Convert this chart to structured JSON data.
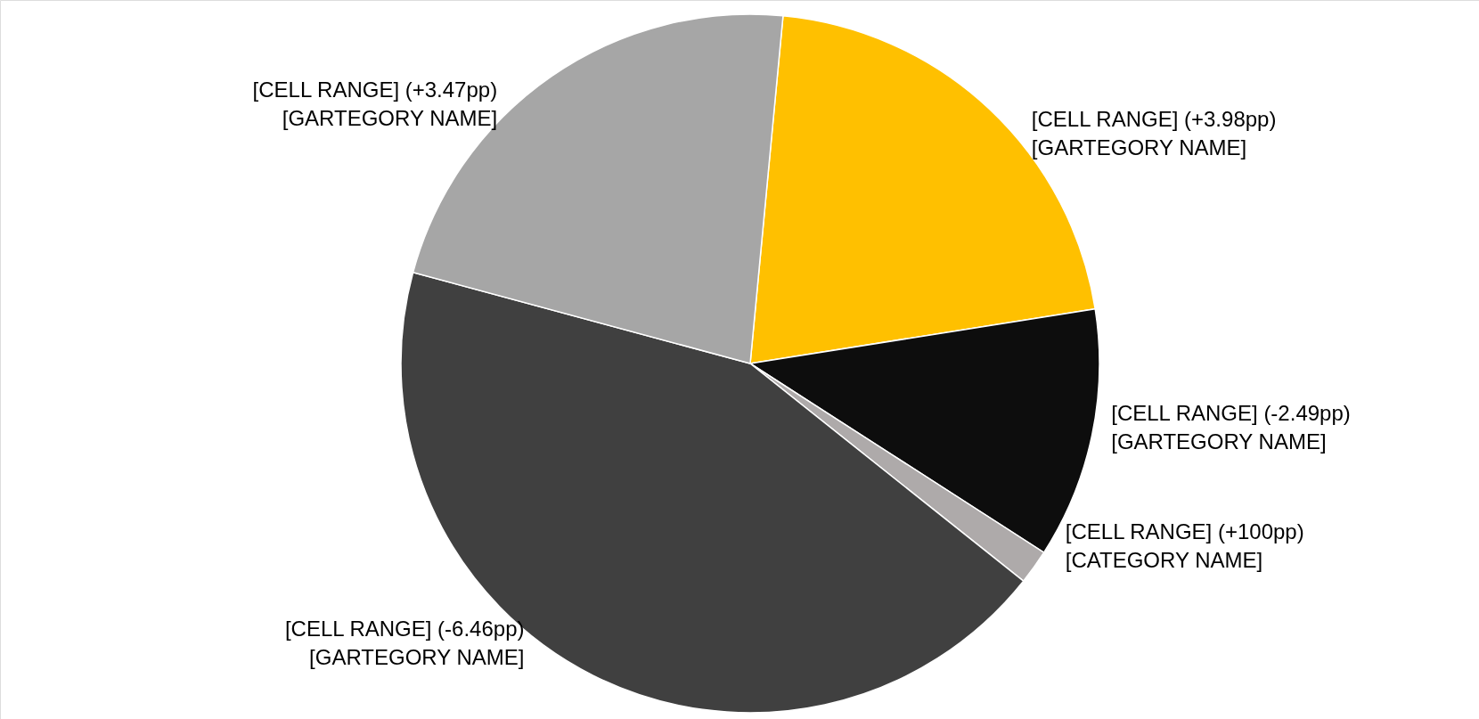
{
  "chart_data": {
    "type": "pie",
    "categories": [
      "[GARTEGORY NAME]",
      "[GARTEGORY NAME]",
      "[CATEGORY NAME]",
      "[GARTEGORY NAME]",
      "[GARTEGORY NAME]"
    ],
    "values": [
      21,
      11.6,
      1.6,
      43.5,
      22.3
    ],
    "colors": [
      "#ffc000",
      "#0d0d0d",
      "#aeaaaa",
      "#404040",
      "#a6a6a6"
    ],
    "annotations": [
      "[CELL RANGE]   (+3.98pp)",
      "[CELL RANGE]   (-2.49pp)",
      "[CELL RANGE]   (+100pp)",
      "[CELL RANGE]   (-6.46pp)",
      "[CELL RANGE]   (+3.47pp)"
    ]
  }
}
